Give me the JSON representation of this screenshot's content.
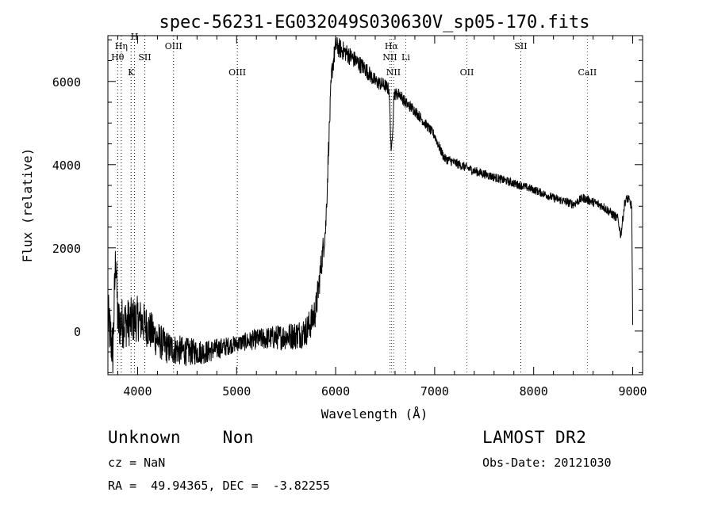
{
  "chart_data": {
    "type": "line",
    "title": "spec-56231-EG032049S030630V_sp05-170.fits",
    "xlabel": "Wavelength (Å)",
    "ylabel": "Flux (relative)",
    "xlim": [
      3700,
      9100
    ],
    "ylim": [
      -1050,
      7100
    ],
    "xticks": [
      4000,
      5000,
      6000,
      7000,
      8000,
      9000
    ],
    "yticks": [
      0,
      2000,
      4000,
      6000
    ],
    "grid": false,
    "line_color": "#000000",
    "line_marker_color": "#cc0000",
    "spectral_lines": [
      {
        "label": "Hη",
        "x": 3835,
        "row": 1,
        "color": "#000000"
      },
      {
        "label": "Hθ",
        "x": 3798,
        "row": 2,
        "color": "#000000"
      },
      {
        "label": "K",
        "x": 3934,
        "row": 3,
        "color": "#000000"
      },
      {
        "label": "H",
        "x": 3969,
        "row": 0,
        "color": "#000000"
      },
      {
        "label": "SII",
        "x": 4072,
        "row": 2,
        "color": "#000000"
      },
      {
        "label": "OIII",
        "x": 4363,
        "row": 1,
        "color": "#000000"
      },
      {
        "label": "OIII",
        "x": 5007,
        "row": 3,
        "color": "#000000"
      },
      {
        "label": "Hα",
        "x": 6563,
        "row": 1,
        "color": "#cc0000"
      },
      {
        "label": "NII",
        "x": 6548,
        "row": 2,
        "color": "#cc0000"
      },
      {
        "label": "Li",
        "x": 6708,
        "row": 2,
        "color": "#cc0000"
      },
      {
        "label": "NII",
        "x": 6584,
        "row": 3,
        "color": "#cc0000"
      },
      {
        "label": "OII",
        "x": 7325,
        "row": 3,
        "color": "#cc0000"
      },
      {
        "label": "SII",
        "x": 7870,
        "row": 1,
        "color": "#000000"
      },
      {
        "label": "CaII",
        "x": 8542,
        "row": 3,
        "color": "#cc0000"
      }
    ],
    "anchors": [
      [
        3700,
        300
      ],
      [
        3750,
        -500
      ],
      [
        3780,
        1900
      ],
      [
        3800,
        200
      ],
      [
        3900,
        200
      ],
      [
        4000,
        300
      ],
      [
        4100,
        100
      ],
      [
        4200,
        -200
      ],
      [
        4300,
        -400
      ],
      [
        4500,
        -500
      ],
      [
        4700,
        -500
      ],
      [
        5000,
        -300
      ],
      [
        5200,
        -200
      ],
      [
        5400,
        -150
      ],
      [
        5600,
        -100
      ],
      [
        5700,
        0
      ],
      [
        5750,
        200
      ],
      [
        5800,
        500
      ],
      [
        5850,
        1500
      ],
      [
        5900,
        2500
      ],
      [
        5930,
        4500
      ],
      [
        5960,
        6200
      ],
      [
        6000,
        6850
      ],
      [
        6100,
        6700
      ],
      [
        6200,
        6500
      ],
      [
        6300,
        6300
      ],
      [
        6400,
        6000
      ],
      [
        6500,
        5900
      ],
      [
        6540,
        5800
      ],
      [
        6563,
        4200
      ],
      [
        6590,
        5700
      ],
      [
        6650,
        5700
      ],
      [
        6700,
        5500
      ],
      [
        6800,
        5300
      ],
      [
        6900,
        5000
      ],
      [
        7000,
        4700
      ],
      [
        7050,
        4400
      ],
      [
        7100,
        4150
      ],
      [
        7200,
        4050
      ],
      [
        7400,
        3850
      ],
      [
        7600,
        3700
      ],
      [
        7800,
        3550
      ],
      [
        8000,
        3400
      ],
      [
        8200,
        3200
      ],
      [
        8400,
        3050
      ],
      [
        8500,
        3200
      ],
      [
        8600,
        3100
      ],
      [
        8700,
        3000
      ],
      [
        8800,
        2800
      ],
      [
        8850,
        2700
      ],
      [
        8880,
        2300
      ],
      [
        8920,
        3100
      ],
      [
        8950,
        3200
      ],
      [
        8990,
        3000
      ],
      [
        9000,
        100
      ]
    ],
    "noise": [
      [
        3700,
        700
      ],
      [
        4300,
        400
      ],
      [
        5000,
        200
      ],
      [
        5800,
        400
      ],
      [
        6000,
        250
      ],
      [
        6600,
        150
      ],
      [
        7000,
        120
      ],
      [
        8000,
        100
      ],
      [
        9000,
        120
      ]
    ]
  },
  "info": {
    "class_text": "Unknown    Non",
    "cz_text": "cz = NaN",
    "radec_text": "RA =  49.94365, DEC =  -3.82255",
    "survey_text": "LAMOST DR2",
    "obsdate_text": "Obs-Date: 20121030"
  }
}
